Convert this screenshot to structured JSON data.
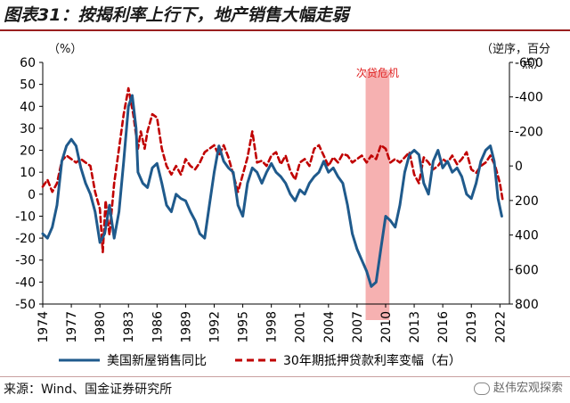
{
  "header": {
    "title": "图表31：按揭利率上行下，地产销售大幅走弱"
  },
  "axes": {
    "left_unit": "（%）",
    "right_unit_line1": "（逆序，百分",
    "right_unit_line2": "点）"
  },
  "footer": {
    "source": "来源：Wind、国金证券研究所",
    "watermark": "赵伟宏观探索"
  },
  "colors": {
    "series_sales": "#1f5a8c",
    "series_rate": "#c00000",
    "shade": "#f4a3a3"
  },
  "chart_data": {
    "type": "line",
    "x_range": [
      1974,
      2023
    ],
    "x_ticks": [
      "1974",
      "1977",
      "1980",
      "1983",
      "1986",
      "1989",
      "1992",
      "1995",
      "1998",
      "2001",
      "2004",
      "2007",
      "2010",
      "2013",
      "2016",
      "2019",
      "2022"
    ],
    "y_left": {
      "min": -50,
      "max": 60,
      "step": 10,
      "ticks": [
        "60",
        "50",
        "40",
        "30",
        "20",
        "10",
        "0",
        "-10",
        "-20",
        "-30",
        "-40",
        "-50"
      ]
    },
    "y_right": {
      "min": -600,
      "max": 800,
      "inverted": true,
      "step": 200,
      "ticks": [
        "-600",
        "-400",
        "-200",
        "0",
        "200",
        "400",
        "600",
        "800"
      ]
    },
    "annotation": {
      "label": "次贷危机",
      "from": 2007.9,
      "to": 2010.4
    },
    "series": [
      {
        "name": "美国新屋销售同比",
        "axis": "left",
        "style": "solid",
        "points": [
          [
            1974,
            -18
          ],
          [
            1974.5,
            -20
          ],
          [
            1975,
            -15
          ],
          [
            1975.5,
            -5
          ],
          [
            1976,
            15
          ],
          [
            1976.5,
            22
          ],
          [
            1977,
            25
          ],
          [
            1977.5,
            22
          ],
          [
            1978,
            12
          ],
          [
            1978.5,
            5
          ],
          [
            1979,
            0
          ],
          [
            1979.5,
            -8
          ],
          [
            1980,
            -22
          ],
          [
            1980.5,
            -18
          ],
          [
            1981,
            -5
          ],
          [
            1981.5,
            -20
          ],
          [
            1982,
            -8
          ],
          [
            1982.5,
            15
          ],
          [
            1983,
            40
          ],
          [
            1983.4,
            45
          ],
          [
            1983.8,
            30
          ],
          [
            1984,
            10
          ],
          [
            1984.5,
            5
          ],
          [
            1985,
            3
          ],
          [
            1985.5,
            12
          ],
          [
            1986,
            14
          ],
          [
            1986.5,
            5
          ],
          [
            1987,
            -5
          ],
          [
            1987.5,
            -8
          ],
          [
            1988,
            0
          ],
          [
            1988.5,
            -2
          ],
          [
            1989,
            -3
          ],
          [
            1989.5,
            -8
          ],
          [
            1990,
            -12
          ],
          [
            1990.5,
            -18
          ],
          [
            1991,
            -20
          ],
          [
            1991.5,
            -5
          ],
          [
            1992,
            10
          ],
          [
            1992.5,
            22
          ],
          [
            1993,
            15
          ],
          [
            1993.5,
            12
          ],
          [
            1994,
            10
          ],
          [
            1994.5,
            -5
          ],
          [
            1995,
            -10
          ],
          [
            1995.5,
            5
          ],
          [
            1996,
            12
          ],
          [
            1996.5,
            10
          ],
          [
            1997,
            5
          ],
          [
            1997.5,
            10
          ],
          [
            1998,
            14
          ],
          [
            1998.5,
            10
          ],
          [
            1999,
            8
          ],
          [
            1999.5,
            5
          ],
          [
            2000,
            0
          ],
          [
            2000.5,
            -3
          ],
          [
            2001,
            2
          ],
          [
            2001.5,
            0
          ],
          [
            2002,
            5
          ],
          [
            2002.5,
            8
          ],
          [
            2003,
            10
          ],
          [
            2003.5,
            15
          ],
          [
            2004,
            10
          ],
          [
            2004.5,
            12
          ],
          [
            2005,
            8
          ],
          [
            2005.5,
            5
          ],
          [
            2006,
            -5
          ],
          [
            2006.5,
            -18
          ],
          [
            2007,
            -25
          ],
          [
            2007.5,
            -30
          ],
          [
            2008,
            -35
          ],
          [
            2008.5,
            -42
          ],
          [
            2009,
            -40
          ],
          [
            2009.5,
            -25
          ],
          [
            2010,
            -10
          ],
          [
            2010.5,
            -12
          ],
          [
            2011,
            -15
          ],
          [
            2011.5,
            -5
          ],
          [
            2012,
            10
          ],
          [
            2012.5,
            18
          ],
          [
            2013,
            20
          ],
          [
            2013.5,
            18
          ],
          [
            2014,
            5
          ],
          [
            2014.5,
            0
          ],
          [
            2015,
            15
          ],
          [
            2015.5,
            20
          ],
          [
            2016,
            12
          ],
          [
            2016.5,
            15
          ],
          [
            2017,
            10
          ],
          [
            2017.5,
            12
          ],
          [
            2018,
            8
          ],
          [
            2018.5,
            0
          ],
          [
            2019,
            -2
          ],
          [
            2019.5,
            5
          ],
          [
            2020,
            15
          ],
          [
            2020.5,
            20
          ],
          [
            2021,
            22
          ],
          [
            2021.4,
            15
          ],
          [
            2021.8,
            -2
          ],
          [
            2022.2,
            -10
          ]
        ]
      },
      {
        "name": "30年期抵押贷款利率变幅（右）",
        "axis": "right",
        "style": "dashed",
        "points": [
          [
            1974,
            120
          ],
          [
            1974.5,
            80
          ],
          [
            1975,
            150
          ],
          [
            1975.5,
            100
          ],
          [
            1976,
            -30
          ],
          [
            1976.5,
            -60
          ],
          [
            1977,
            -40
          ],
          [
            1977.5,
            -20
          ],
          [
            1978,
            -40
          ],
          [
            1978.5,
            -20
          ],
          [
            1979,
            0
          ],
          [
            1979.5,
            150
          ],
          [
            1980,
            250
          ],
          [
            1980.3,
            500
          ],
          [
            1980.6,
            200
          ],
          [
            1981,
            400
          ],
          [
            1981.5,
            100
          ],
          [
            1982,
            -100
          ],
          [
            1982.5,
            -300
          ],
          [
            1983,
            -450
          ],
          [
            1983.5,
            -300
          ],
          [
            1984,
            -100
          ],
          [
            1984.3,
            -200
          ],
          [
            1984.7,
            -100
          ],
          [
            1985,
            -200
          ],
          [
            1985.5,
            -300
          ],
          [
            1986,
            -280
          ],
          [
            1986.5,
            -100
          ],
          [
            1987,
            0
          ],
          [
            1987.5,
            50
          ],
          [
            1988,
            0
          ],
          [
            1988.5,
            50
          ],
          [
            1989,
            -40
          ],
          [
            1989.5,
            0
          ],
          [
            1990,
            20
          ],
          [
            1990.5,
            -20
          ],
          [
            1991,
            -80
          ],
          [
            1991.5,
            -100
          ],
          [
            1992,
            -120
          ],
          [
            1992.5,
            -60
          ],
          [
            1993,
            -120
          ],
          [
            1993.5,
            -50
          ],
          [
            1994,
            50
          ],
          [
            1994.5,
            150
          ],
          [
            1995,
            50
          ],
          [
            1995.5,
            -50
          ],
          [
            1996,
            -200
          ],
          [
            1996.5,
            -20
          ],
          [
            1997,
            -30
          ],
          [
            1997.5,
            0
          ],
          [
            1998,
            -60
          ],
          [
            1998.5,
            -80
          ],
          [
            1999,
            -10
          ],
          [
            1999.5,
            -60
          ],
          [
            2000,
            30
          ],
          [
            2000.5,
            80
          ],
          [
            2001,
            -20
          ],
          [
            2001.5,
            -40
          ],
          [
            2002,
            0
          ],
          [
            2002.5,
            -100
          ],
          [
            2003,
            -120
          ],
          [
            2003.5,
            -60
          ],
          [
            2004,
            0
          ],
          [
            2004.5,
            -50
          ],
          [
            2005,
            -20
          ],
          [
            2005.5,
            -70
          ],
          [
            2006,
            -60
          ],
          [
            2006.5,
            -20
          ],
          [
            2007,
            -40
          ],
          [
            2007.5,
            -60
          ],
          [
            2008,
            -20
          ],
          [
            2008.5,
            -60
          ],
          [
            2009,
            -40
          ],
          [
            2009.5,
            -120
          ],
          [
            2010,
            -100
          ],
          [
            2010.5,
            -20
          ],
          [
            2011,
            -40
          ],
          [
            2011.5,
            -20
          ],
          [
            2012,
            -50
          ],
          [
            2012.5,
            -80
          ],
          [
            2013,
            50
          ],
          [
            2013.5,
            100
          ],
          [
            2014,
            -50
          ],
          [
            2014.5,
            -20
          ],
          [
            2015,
            20
          ],
          [
            2015.5,
            0
          ],
          [
            2016,
            -40
          ],
          [
            2016.5,
            -20
          ],
          [
            2017,
            -60
          ],
          [
            2017.5,
            -10
          ],
          [
            2018,
            -40
          ],
          [
            2018.5,
            -80
          ],
          [
            2019,
            20
          ],
          [
            2019.5,
            40
          ],
          [
            2020,
            0
          ],
          [
            2020.5,
            -20
          ],
          [
            2021,
            -60
          ],
          [
            2021.5,
            0
          ],
          [
            2022,
            100
          ],
          [
            2022.3,
            200
          ]
        ]
      }
    ],
    "legend": {
      "placement": "bottom",
      "items": [
        "美国新屋销售同比",
        "30年期抵押贷款利率变幅（右）"
      ]
    }
  }
}
